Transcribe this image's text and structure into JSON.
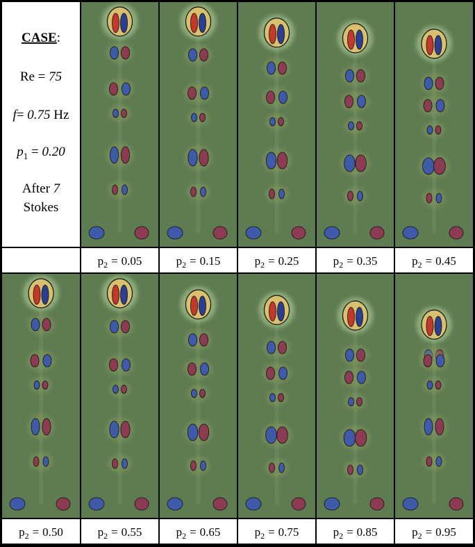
{
  "case": {
    "title": "CASE",
    "title_suffix": ":",
    "re": {
      "label": "Re =",
      "value": "75"
    },
    "frequency": {
      "symbol": "f",
      "relation": "=",
      "value": "0.75",
      "unit": "Hz"
    },
    "p1": {
      "symbol": "p",
      "subscript": "1",
      "relation": "=",
      "value": "0.20"
    },
    "strokes": {
      "prefix": "After",
      "value": "7",
      "suffix": "Stokes"
    }
  },
  "panels": [
    {
      "symbol": "p",
      "subscript": "2",
      "relation": "=",
      "value": "0.05"
    },
    {
      "symbol": "p",
      "subscript": "2",
      "relation": "=",
      "value": "0.15"
    },
    {
      "symbol": "p",
      "subscript": "2",
      "relation": "=",
      "value": "0.25"
    },
    {
      "symbol": "p",
      "subscript": "2",
      "relation": "=",
      "value": "0.35"
    },
    {
      "symbol": "p",
      "subscript": "2",
      "relation": "=",
      "value": "0.45"
    },
    {
      "symbol": "p",
      "subscript": "2",
      "relation": "=",
      "value": "0.50"
    },
    {
      "symbol": "p",
      "subscript": "2",
      "relation": "=",
      "value": "0.55"
    },
    {
      "symbol": "p",
      "subscript": "2",
      "relation": "=",
      "value": "0.65"
    },
    {
      "symbol": "p",
      "subscript": "2",
      "relation": "=",
      "value": "0.75"
    },
    {
      "symbol": "p",
      "subscript": "2",
      "relation": "=",
      "value": "0.85"
    },
    {
      "symbol": "p",
      "subscript": "2",
      "relation": "=",
      "value": "0.95"
    }
  ]
}
